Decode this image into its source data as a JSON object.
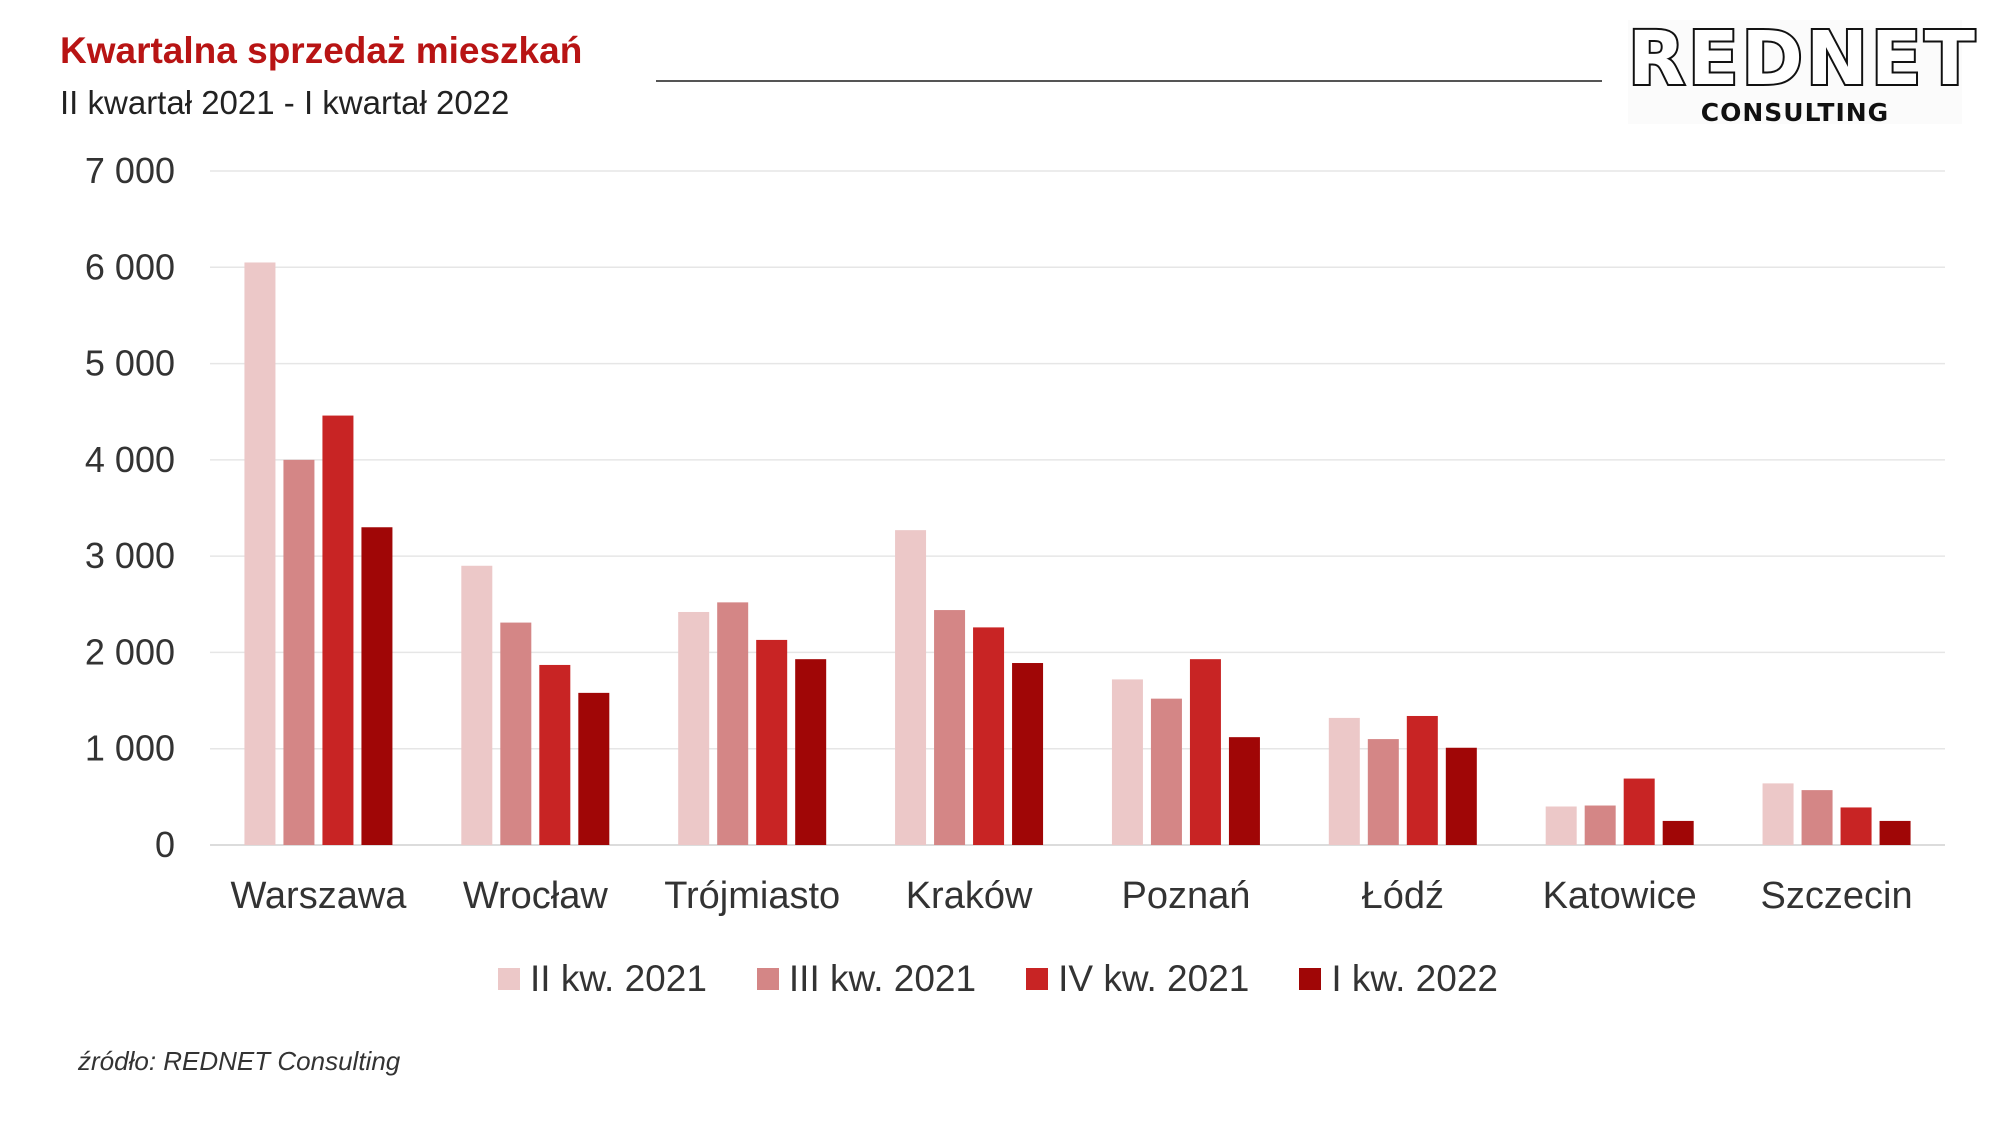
{
  "header": {
    "title": "Kwartalna sprzedaż mieszkań",
    "subtitle": "II kwartał 2021 - I kwartał 2022"
  },
  "logo": {
    "name": "REDNET",
    "tagline": "CONSULTING"
  },
  "source": "źródło: REDNET Consulting",
  "chart_data": {
    "type": "bar",
    "title": "Kwartalna sprzedaż mieszkań",
    "subtitle": "II kwartał 2021 - I kwartał 2022",
    "xlabel": "",
    "ylabel": "",
    "ylim": [
      0,
      7000
    ],
    "yticks": [
      0,
      1000,
      2000,
      3000,
      4000,
      5000,
      6000,
      7000
    ],
    "ytick_labels": [
      "0",
      "1 000",
      "2 000",
      "3 000",
      "4 000",
      "5 000",
      "6 000",
      "7 000"
    ],
    "grid": true,
    "legend_position": "bottom",
    "categories": [
      "Warszawa",
      "Wrocław",
      "Trójmiasto",
      "Kraków",
      "Poznań",
      "Łódź",
      "Katowice",
      "Szczecin"
    ],
    "series": [
      {
        "name": "II kw. 2021",
        "color": "#ecc8c8",
        "values": [
          6050,
          2900,
          2420,
          3270,
          1720,
          1320,
          400,
          640
        ]
      },
      {
        "name": "III kw. 2021",
        "color": "#d48686",
        "values": [
          4000,
          2310,
          2520,
          2440,
          1520,
          1100,
          410,
          570
        ]
      },
      {
        "name": "IV kw. 2021",
        "color": "#c82424",
        "values": [
          4460,
          1870,
          2130,
          2260,
          1930,
          1340,
          690,
          390
        ]
      },
      {
        "name": "I kw. 2022",
        "color": "#a00606",
        "values": [
          3300,
          1580,
          1930,
          1890,
          1120,
          1010,
          250,
          250
        ]
      }
    ]
  }
}
